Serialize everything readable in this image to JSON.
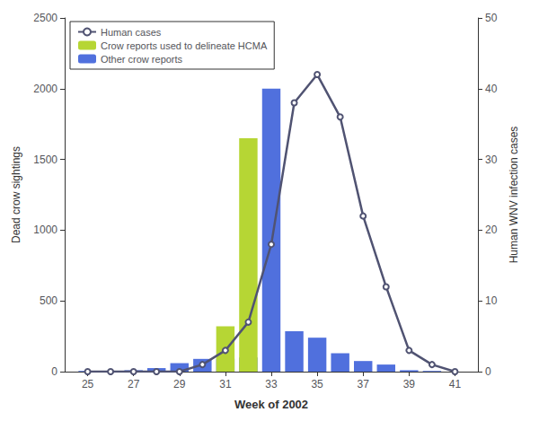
{
  "chart_data": {
    "type": "bar",
    "x": [
      25,
      26,
      27,
      28,
      29,
      30,
      31,
      32,
      33,
      34,
      35,
      36,
      37,
      38,
      39,
      40,
      41
    ],
    "xlim": [
      24,
      42
    ],
    "xticks": [
      25,
      27,
      29,
      31,
      33,
      35,
      37,
      39,
      41
    ],
    "xlabel": "Week of 2002",
    "ylabel": "Dead crow sightings",
    "ylim": [
      0,
      2500
    ],
    "yticks": [
      0,
      500,
      1000,
      1500,
      2000,
      2500
    ],
    "y2label": "Human WNV infection cases",
    "y2lim": [
      0,
      50
    ],
    "y2ticks": [
      0,
      10,
      20,
      30,
      40,
      50
    ],
    "grid": false,
    "legend": "upper left",
    "series": [
      {
        "name": "Human cases",
        "type": "line",
        "axis": "y2",
        "values": [
          0,
          0,
          0,
          0,
          0,
          1,
          3,
          7,
          18,
          38,
          42,
          36,
          22,
          12,
          3,
          1,
          0
        ]
      },
      {
        "name": "Crow reports used to delineate HCMA",
        "type": "bar",
        "values": [
          0,
          0,
          0,
          0,
          0,
          0,
          320,
          1650,
          0,
          0,
          0,
          0,
          0,
          0,
          0,
          0,
          0
        ]
      },
      {
        "name": "Other crow reports",
        "type": "bar",
        "values": [
          5,
          5,
          10,
          25,
          60,
          90,
          90,
          100,
          2000,
          285,
          240,
          130,
          75,
          50,
          10,
          5,
          0
        ]
      }
    ]
  }
}
